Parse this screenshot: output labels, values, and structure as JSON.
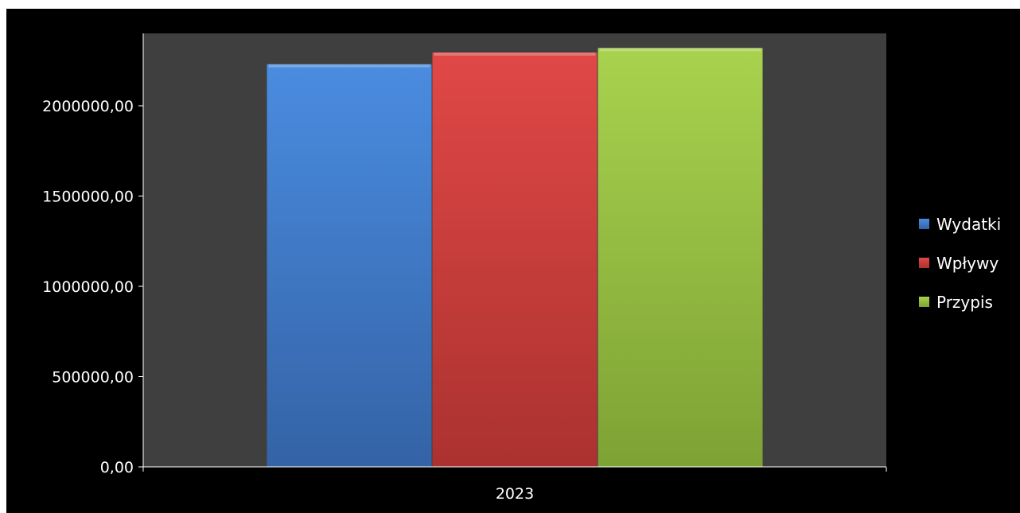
{
  "chart_data": {
    "type": "bar",
    "categories": [
      "2023"
    ],
    "series": [
      {
        "name": "Wydatki",
        "values": [
          2230000
        ],
        "color": "#3d78c8"
      },
      {
        "name": "Wpływy",
        "values": [
          2295000
        ],
        "color": "#cf3c3a"
      },
      {
        "name": "Przypis",
        "values": [
          2320000
        ],
        "color": "#96c23e"
      }
    ],
    "title": "",
    "xlabel": "",
    "ylabel": "",
    "ylim": [
      0,
      2250000
    ],
    "yticks": [
      0,
      500000,
      1000000,
      1500000,
      2000000
    ],
    "ytick_labels": [
      "0,00",
      "500000,00",
      "1000000,00",
      "1500000,00",
      "2000000,00"
    ],
    "grid": false,
    "legend_position": "right",
    "plot_background": "#3f3f3f",
    "background": "#000000"
  }
}
